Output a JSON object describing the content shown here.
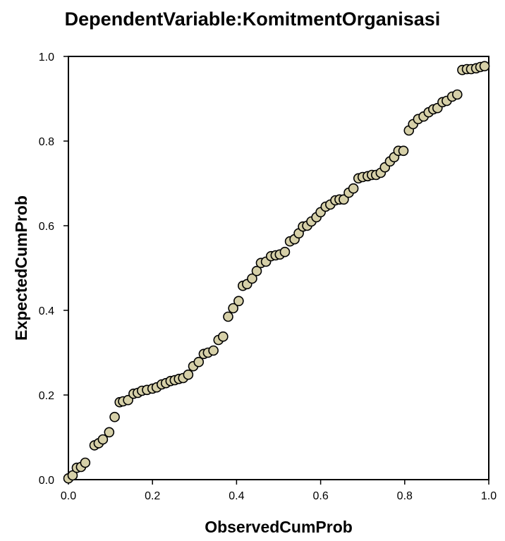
{
  "chart_data": {
    "type": "scatter",
    "title": "DependentVariable:KomitmentOrganisasi",
    "xlabel": "ObservedCumProb",
    "ylabel": "ExpectedCumProb",
    "xlim": [
      0.0,
      1.0
    ],
    "ylim": [
      0.0,
      1.0
    ],
    "x_ticks": [
      "0.0",
      "0.2",
      "0.4",
      "0.6",
      "0.8",
      "1.0"
    ],
    "y_ticks": [
      "0.0",
      "0.2",
      "0.4",
      "0.6",
      "0.8",
      "1.0"
    ],
    "grid": false,
    "marker_fill": "#d6d0a8",
    "marker_edge": "#000000",
    "points": [
      [
        0.0,
        0.003
      ],
      [
        0.01,
        0.01
      ],
      [
        0.02,
        0.028
      ],
      [
        0.03,
        0.03
      ],
      [
        0.04,
        0.04
      ],
      [
        0.062,
        0.081
      ],
      [
        0.072,
        0.086
      ],
      [
        0.082,
        0.095
      ],
      [
        0.097,
        0.112
      ],
      [
        0.11,
        0.148
      ],
      [
        0.122,
        0.183
      ],
      [
        0.13,
        0.185
      ],
      [
        0.142,
        0.188
      ],
      [
        0.155,
        0.203
      ],
      [
        0.165,
        0.205
      ],
      [
        0.175,
        0.21
      ],
      [
        0.187,
        0.212
      ],
      [
        0.2,
        0.215
      ],
      [
        0.21,
        0.218
      ],
      [
        0.222,
        0.225
      ],
      [
        0.232,
        0.228
      ],
      [
        0.243,
        0.233
      ],
      [
        0.253,
        0.235
      ],
      [
        0.263,
        0.238
      ],
      [
        0.273,
        0.24
      ],
      [
        0.285,
        0.248
      ],
      [
        0.297,
        0.268
      ],
      [
        0.31,
        0.278
      ],
      [
        0.322,
        0.297
      ],
      [
        0.332,
        0.3
      ],
      [
        0.345,
        0.305
      ],
      [
        0.357,
        0.33
      ],
      [
        0.368,
        0.338
      ],
      [
        0.38,
        0.385
      ],
      [
        0.392,
        0.405
      ],
      [
        0.405,
        0.422
      ],
      [
        0.415,
        0.458
      ],
      [
        0.425,
        0.462
      ],
      [
        0.437,
        0.475
      ],
      [
        0.448,
        0.493
      ],
      [
        0.458,
        0.512
      ],
      [
        0.47,
        0.515
      ],
      [
        0.482,
        0.528
      ],
      [
        0.493,
        0.53
      ],
      [
        0.503,
        0.532
      ],
      [
        0.515,
        0.538
      ],
      [
        0.527,
        0.563
      ],
      [
        0.538,
        0.568
      ],
      [
        0.548,
        0.582
      ],
      [
        0.558,
        0.598
      ],
      [
        0.568,
        0.6
      ],
      [
        0.578,
        0.61
      ],
      [
        0.59,
        0.62
      ],
      [
        0.6,
        0.632
      ],
      [
        0.612,
        0.645
      ],
      [
        0.623,
        0.65
      ],
      [
        0.635,
        0.66
      ],
      [
        0.645,
        0.662
      ],
      [
        0.655,
        0.662
      ],
      [
        0.667,
        0.678
      ],
      [
        0.678,
        0.688
      ],
      [
        0.69,
        0.712
      ],
      [
        0.7,
        0.715
      ],
      [
        0.712,
        0.717
      ],
      [
        0.722,
        0.72
      ],
      [
        0.732,
        0.72
      ],
      [
        0.743,
        0.725
      ],
      [
        0.753,
        0.738
      ],
      [
        0.765,
        0.752
      ],
      [
        0.775,
        0.762
      ],
      [
        0.785,
        0.777
      ],
      [
        0.797,
        0.777
      ],
      [
        0.81,
        0.825
      ],
      [
        0.82,
        0.84
      ],
      [
        0.832,
        0.852
      ],
      [
        0.845,
        0.858
      ],
      [
        0.857,
        0.868
      ],
      [
        0.868,
        0.875
      ],
      [
        0.878,
        0.878
      ],
      [
        0.89,
        0.892
      ],
      [
        0.9,
        0.895
      ],
      [
        0.913,
        0.905
      ],
      [
        0.925,
        0.91
      ],
      [
        0.937,
        0.968
      ],
      [
        0.948,
        0.97
      ],
      [
        0.958,
        0.97
      ],
      [
        0.97,
        0.972
      ],
      [
        0.98,
        0.975
      ],
      [
        0.99,
        0.977
      ]
    ]
  }
}
